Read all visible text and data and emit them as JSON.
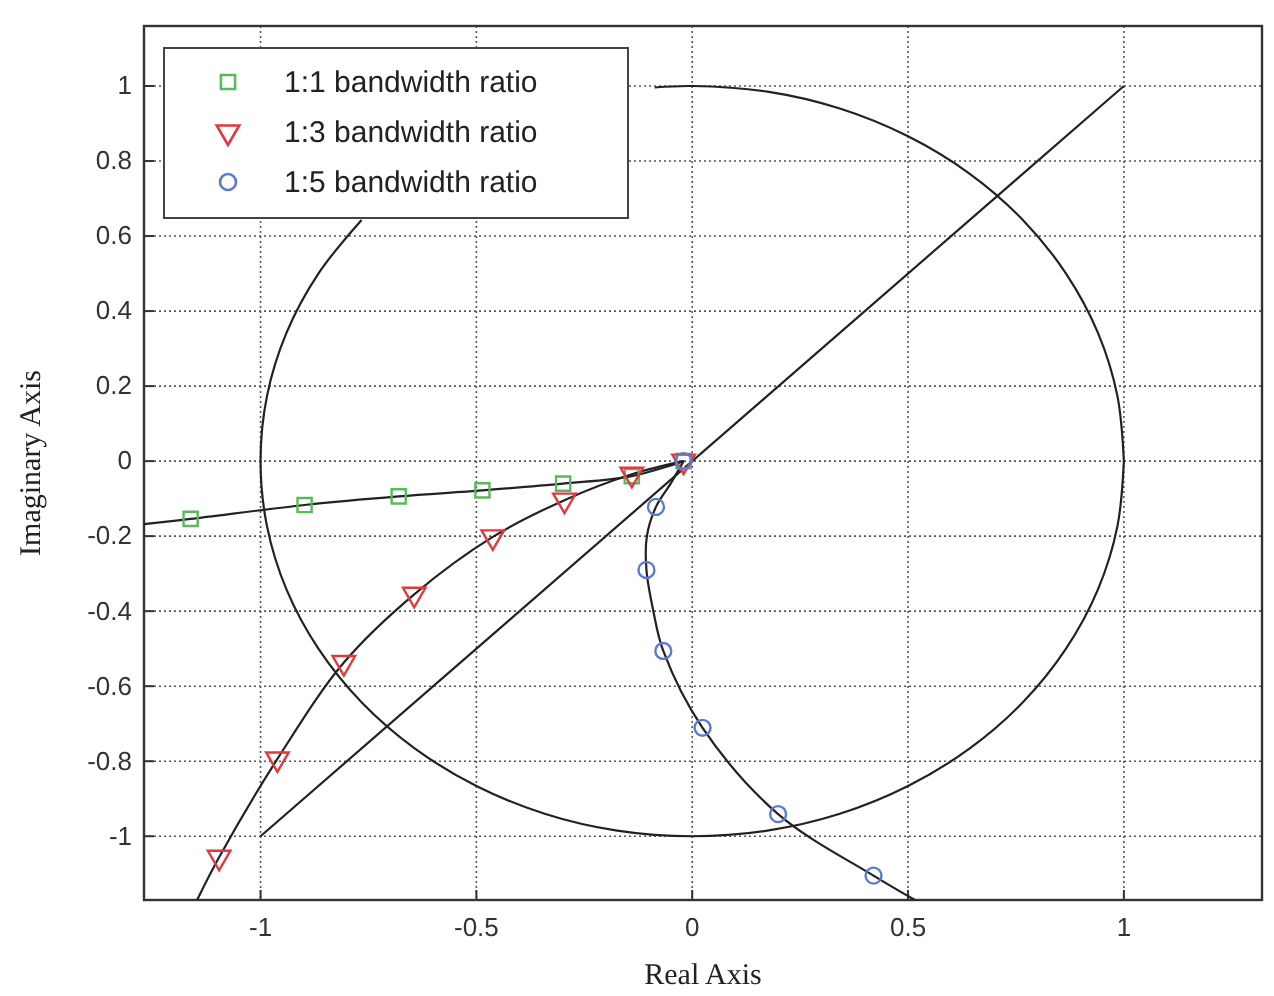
{
  "chart_data": {
    "type": "scatter",
    "xlabel": "Real Axis",
    "ylabel": "Imaginary Axis",
    "xlim": [
      -1.27,
      1.32
    ],
    "ylim": [
      -1.17,
      1.16
    ],
    "xticks": [
      -1,
      -0.5,
      0,
      0.5,
      1
    ],
    "yticks": [
      -1,
      -0.8,
      -0.6,
      -0.4,
      -0.2,
      0,
      0.2,
      0.4,
      0.6,
      0.8,
      1
    ],
    "grid": true,
    "legend": "top left",
    "series": [
      {
        "type": "line",
        "color": "#222222",
        "x": [
          1,
          0.985,
          0.94,
          0.866,
          0.766,
          0.643,
          0.5,
          0.342,
          0.174,
          0,
          -0.087,
          -0.42,
          -0.766,
          -0.866,
          -0.94,
          -0.985,
          -1,
          -0.985,
          -0.94,
          -0.866,
          -0.766,
          -0.643,
          -0.5,
          -0.342,
          -0.174,
          0,
          0.174,
          0.342,
          0.5,
          0.643,
          0.766,
          0.866,
          0.94,
          0.985,
          1
        ],
        "values": [
          0,
          0.174,
          0.342,
          0.5,
          0.643,
          0.766,
          0.866,
          0.94,
          0.985,
          1,
          0.996,
          null,
          0.643,
          0.5,
          0.342,
          0.174,
          0,
          -0.174,
          -0.342,
          -0.5,
          -0.643,
          -0.766,
          -0.866,
          -0.94,
          -0.985,
          -1,
          -0.985,
          -0.94,
          -0.866,
          -0.766,
          -0.643,
          -0.5,
          -0.342,
          -0.174,
          0
        ]
      },
      {
        "type": "line",
        "color": "#222222",
        "x": [
          -1,
          1
        ],
        "values": [
          -1,
          1
        ]
      },
      {
        "type": "line",
        "color": "#222222",
        "x": [
          -1.27,
          -1.162,
          -0.898,
          -0.68,
          -0.486,
          -0.299,
          -0.14,
          -0.02
        ],
        "values": [
          -0.168,
          -0.154,
          -0.117,
          -0.094,
          -0.078,
          -0.06,
          -0.04,
          0
        ]
      },
      {
        "type": "line",
        "color": "#222222",
        "x": [
          -1.147,
          -1.096,
          -0.961,
          -0.807,
          -0.644,
          -0.462,
          -0.296,
          -0.14,
          -0.02
        ],
        "values": [
          -1.17,
          -1.056,
          -0.794,
          -0.537,
          -0.355,
          -0.202,
          -0.104,
          -0.035,
          0
        ]
      },
      {
        "type": "line",
        "color": "#222222",
        "x": [
          -0.02,
          -0.05,
          -0.084,
          -0.105,
          -0.106,
          -0.09,
          -0.067,
          0.024,
          0.199,
          0.42,
          0.516
        ],
        "values": [
          0,
          -0.06,
          -0.122,
          -0.2,
          -0.29,
          -0.4,
          -0.506,
          -0.711,
          -0.941,
          -1.105,
          -1.17
        ]
      },
      {
        "name": "1:1 bandwidth ratio",
        "color": "#5cb85c",
        "marker": "square",
        "x": [
          -1.162,
          -0.898,
          -0.68,
          -0.486,
          -0.299,
          -0.14,
          -0.02
        ],
        "values": [
          -0.154,
          -0.117,
          -0.094,
          -0.078,
          -0.06,
          -0.04,
          0
        ]
      },
      {
        "name": "1:3 bandwidth ratio",
        "color": "#e0393e",
        "marker": "triangle",
        "x": [
          -1.096,
          -0.961,
          -0.807,
          -0.644,
          -0.462,
          -0.296,
          -0.14,
          -0.02
        ],
        "values": [
          -1.056,
          -0.794,
          -0.537,
          -0.355,
          -0.202,
          -0.104,
          -0.035,
          0
        ]
      },
      {
        "name": "1:5 bandwidth ratio",
        "color": "#5b7bd0",
        "marker": "circle",
        "x": [
          -0.02,
          -0.084,
          -0.106,
          -0.067,
          0.024,
          0.199,
          0.42
        ],
        "values": [
          0,
          -0.122,
          -0.29,
          -0.506,
          -0.711,
          -0.941,
          -1.105
        ]
      }
    ]
  }
}
